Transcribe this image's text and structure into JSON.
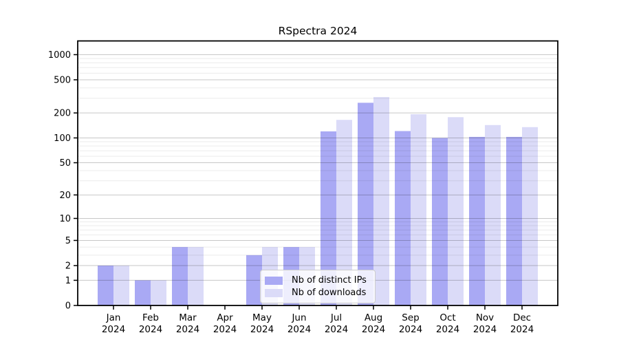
{
  "title": "RSpectra 2024",
  "chart_data": {
    "type": "bar",
    "title": "RSpectra 2024",
    "categories": [
      "Jan 2024",
      "Feb 2024",
      "Mar 2024",
      "Apr 2024",
      "May 2024",
      "Jun 2024",
      "Jul 2024",
      "Aug 2024",
      "Sep 2024",
      "Oct 2024",
      "Nov 2024",
      "Dec 2024"
    ],
    "series": [
      {
        "name": "Nb of distinct IPs",
        "color": "#a9a9f4",
        "values": [
          2,
          1,
          4,
          0,
          3,
          4,
          120,
          265,
          121,
          100,
          103,
          103
        ]
      },
      {
        "name": "Nb of downloads",
        "color": "#dbdbf8",
        "values": [
          2,
          1,
          4,
          0,
          4,
          4,
          165,
          310,
          193,
          178,
          143,
          135
        ]
      }
    ],
    "xlabel": "",
    "ylabel": "",
    "y_scale": "log10(value+1)",
    "y_ticks": [
      0,
      1,
      2,
      5,
      10,
      20,
      50,
      100,
      200,
      500,
      1000
    ],
    "ylim": [
      0,
      1440
    ],
    "grid": "on",
    "legend_position": "inside lower-center"
  },
  "colors": {
    "bar_distinct_ips": "#a9a9f4",
    "bar_downloads": "#dbdbf8",
    "frame": "#000000",
    "major_grid": "#c7c7c7",
    "minor_grid": "#ebebeb",
    "legend_border": "#cccccc",
    "legend_background": "rgba(255,255,255,0.8)"
  }
}
